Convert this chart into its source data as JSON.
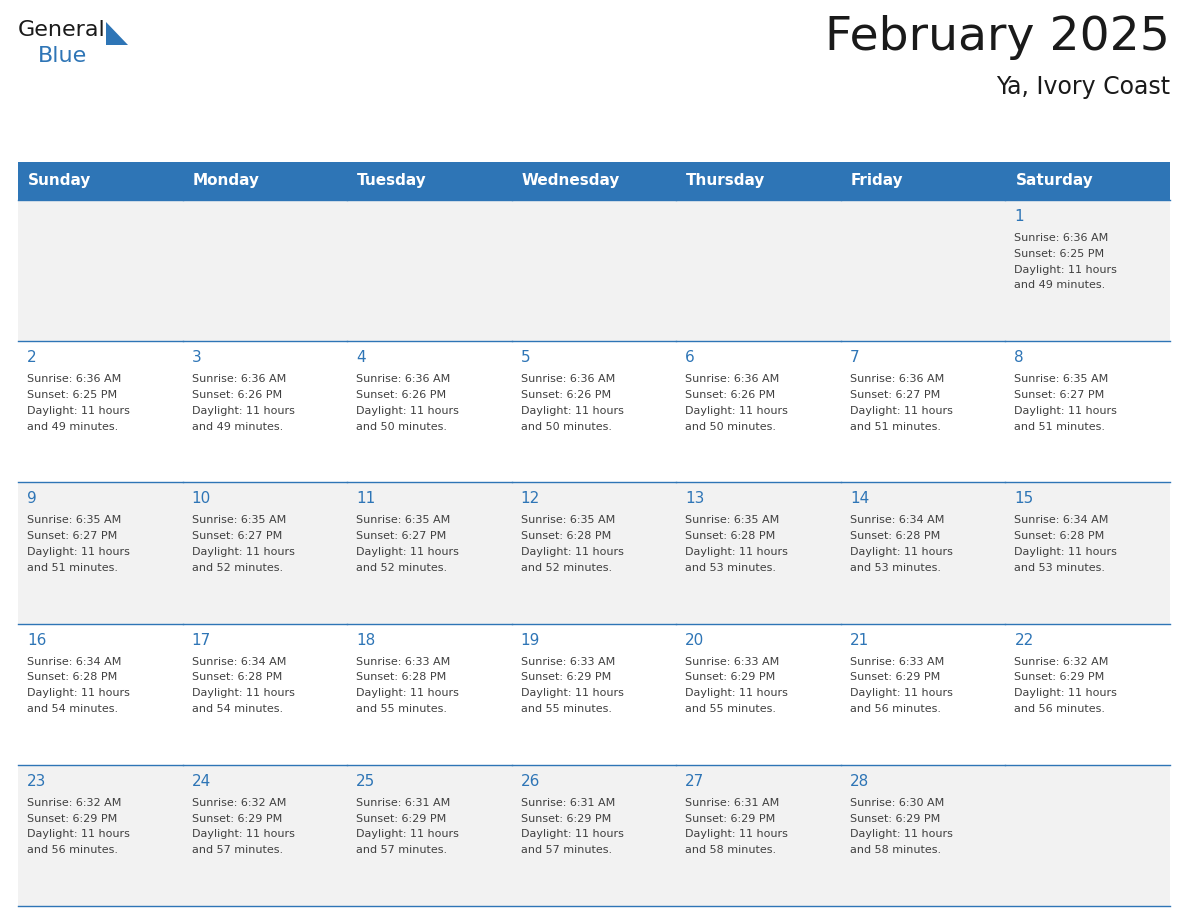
{
  "title": "February 2025",
  "subtitle": "Ya, Ivory Coast",
  "days_of_week": [
    "Sunday",
    "Monday",
    "Tuesday",
    "Wednesday",
    "Thursday",
    "Friday",
    "Saturday"
  ],
  "header_bg": "#2E75B6",
  "header_text_color": "#FFFFFF",
  "cell_bg_white": "#FFFFFF",
  "cell_bg_gray": "#F2F2F2",
  "grid_line_color": "#2E75B6",
  "day_number_color": "#2E75B6",
  "text_color": "#404040",
  "logo_general_color": "#1a1a1a",
  "logo_blue_color": "#2E75B6",
  "calendar_data": [
    [
      null,
      null,
      null,
      null,
      null,
      null,
      {
        "day": 1,
        "sunrise": "6:36 AM",
        "sunset": "6:25 PM",
        "daylight_h": "11 hours",
        "daylight_m": "49 minutes."
      }
    ],
    [
      {
        "day": 2,
        "sunrise": "6:36 AM",
        "sunset": "6:25 PM",
        "daylight_h": "11 hours",
        "daylight_m": "49 minutes."
      },
      {
        "day": 3,
        "sunrise": "6:36 AM",
        "sunset": "6:26 PM",
        "daylight_h": "11 hours",
        "daylight_m": "49 minutes."
      },
      {
        "day": 4,
        "sunrise": "6:36 AM",
        "sunset": "6:26 PM",
        "daylight_h": "11 hours",
        "daylight_m": "50 minutes."
      },
      {
        "day": 5,
        "sunrise": "6:36 AM",
        "sunset": "6:26 PM",
        "daylight_h": "11 hours",
        "daylight_m": "50 minutes."
      },
      {
        "day": 6,
        "sunrise": "6:36 AM",
        "sunset": "6:26 PM",
        "daylight_h": "11 hours",
        "daylight_m": "50 minutes."
      },
      {
        "day": 7,
        "sunrise": "6:36 AM",
        "sunset": "6:27 PM",
        "daylight_h": "11 hours",
        "daylight_m": "51 minutes."
      },
      {
        "day": 8,
        "sunrise": "6:35 AM",
        "sunset": "6:27 PM",
        "daylight_h": "11 hours",
        "daylight_m": "51 minutes."
      }
    ],
    [
      {
        "day": 9,
        "sunrise": "6:35 AM",
        "sunset": "6:27 PM",
        "daylight_h": "11 hours",
        "daylight_m": "51 minutes."
      },
      {
        "day": 10,
        "sunrise": "6:35 AM",
        "sunset": "6:27 PM",
        "daylight_h": "11 hours",
        "daylight_m": "52 minutes."
      },
      {
        "day": 11,
        "sunrise": "6:35 AM",
        "sunset": "6:27 PM",
        "daylight_h": "11 hours",
        "daylight_m": "52 minutes."
      },
      {
        "day": 12,
        "sunrise": "6:35 AM",
        "sunset": "6:28 PM",
        "daylight_h": "11 hours",
        "daylight_m": "52 minutes."
      },
      {
        "day": 13,
        "sunrise": "6:35 AM",
        "sunset": "6:28 PM",
        "daylight_h": "11 hours",
        "daylight_m": "53 minutes."
      },
      {
        "day": 14,
        "sunrise": "6:34 AM",
        "sunset": "6:28 PM",
        "daylight_h": "11 hours",
        "daylight_m": "53 minutes."
      },
      {
        "day": 15,
        "sunrise": "6:34 AM",
        "sunset": "6:28 PM",
        "daylight_h": "11 hours",
        "daylight_m": "53 minutes."
      }
    ],
    [
      {
        "day": 16,
        "sunrise": "6:34 AM",
        "sunset": "6:28 PM",
        "daylight_h": "11 hours",
        "daylight_m": "54 minutes."
      },
      {
        "day": 17,
        "sunrise": "6:34 AM",
        "sunset": "6:28 PM",
        "daylight_h": "11 hours",
        "daylight_m": "54 minutes."
      },
      {
        "day": 18,
        "sunrise": "6:33 AM",
        "sunset": "6:28 PM",
        "daylight_h": "11 hours",
        "daylight_m": "55 minutes."
      },
      {
        "day": 19,
        "sunrise": "6:33 AM",
        "sunset": "6:29 PM",
        "daylight_h": "11 hours",
        "daylight_m": "55 minutes."
      },
      {
        "day": 20,
        "sunrise": "6:33 AM",
        "sunset": "6:29 PM",
        "daylight_h": "11 hours",
        "daylight_m": "55 minutes."
      },
      {
        "day": 21,
        "sunrise": "6:33 AM",
        "sunset": "6:29 PM",
        "daylight_h": "11 hours",
        "daylight_m": "56 minutes."
      },
      {
        "day": 22,
        "sunrise": "6:32 AM",
        "sunset": "6:29 PM",
        "daylight_h": "11 hours",
        "daylight_m": "56 minutes."
      }
    ],
    [
      {
        "day": 23,
        "sunrise": "6:32 AM",
        "sunset": "6:29 PM",
        "daylight_h": "11 hours",
        "daylight_m": "56 minutes."
      },
      {
        "day": 24,
        "sunrise": "6:32 AM",
        "sunset": "6:29 PM",
        "daylight_h": "11 hours",
        "daylight_m": "57 minutes."
      },
      {
        "day": 25,
        "sunrise": "6:31 AM",
        "sunset": "6:29 PM",
        "daylight_h": "11 hours",
        "daylight_m": "57 minutes."
      },
      {
        "day": 26,
        "sunrise": "6:31 AM",
        "sunset": "6:29 PM",
        "daylight_h": "11 hours",
        "daylight_m": "57 minutes."
      },
      {
        "day": 27,
        "sunrise": "6:31 AM",
        "sunset": "6:29 PM",
        "daylight_h": "11 hours",
        "daylight_m": "58 minutes."
      },
      {
        "day": 28,
        "sunrise": "6:30 AM",
        "sunset": "6:29 PM",
        "daylight_h": "11 hours",
        "daylight_m": "58 minutes."
      },
      null
    ]
  ]
}
